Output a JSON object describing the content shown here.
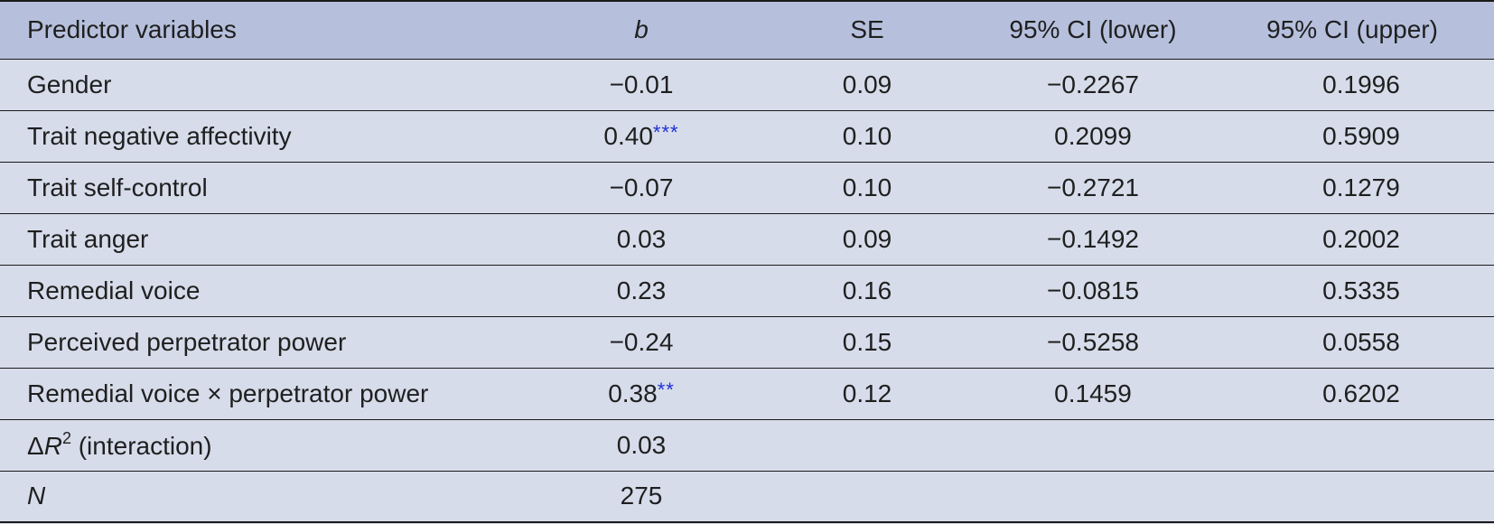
{
  "table": {
    "headers": [
      "Predictor variables",
      "b",
      "SE",
      "95% CI (lower)",
      "95% CI (upper)"
    ],
    "rows": [
      {
        "predictor": "Gender",
        "b": "−0.01",
        "sig": "",
        "se": "0.09",
        "ci_lower": "−0.2267",
        "ci_upper": "0.1996"
      },
      {
        "predictor": "Trait negative affectivity",
        "b": "0.40",
        "sig": "***",
        "se": "0.10",
        "ci_lower": "0.2099",
        "ci_upper": "0.5909"
      },
      {
        "predictor": "Trait self-control",
        "b": "−0.07",
        "sig": "",
        "se": "0.10",
        "ci_lower": "−0.2721",
        "ci_upper": "0.1279"
      },
      {
        "predictor": "Trait anger",
        "b": "0.03",
        "sig": "",
        "se": "0.09",
        "ci_lower": "−0.1492",
        "ci_upper": "0.2002"
      },
      {
        "predictor": "Remedial voice",
        "b": "0.23",
        "sig": "",
        "se": "0.16",
        "ci_lower": "−0.0815",
        "ci_upper": "0.5335"
      },
      {
        "predictor": "Perceived perpetrator power",
        "b": "−0.24",
        "sig": "",
        "se": "0.15",
        "ci_lower": "−0.5258",
        "ci_upper": "0.0558"
      },
      {
        "predictor": "Remedial voice × perpetrator power",
        "b": "0.38",
        "sig": "**",
        "se": "0.12",
        "ci_lower": "0.1459",
        "ci_upper": "0.6202"
      }
    ],
    "delta_r2": {
      "symbol": "Δ",
      "var": "R",
      "sup": "2",
      "suffix": " (interaction)",
      "value": "0.03"
    },
    "n_row": {
      "label": "N",
      "value": "275"
    }
  },
  "colors": {
    "header_bg": "#b6c0dd",
    "body_bg": "#d6dcea",
    "significance": "#1f2fd6"
  }
}
